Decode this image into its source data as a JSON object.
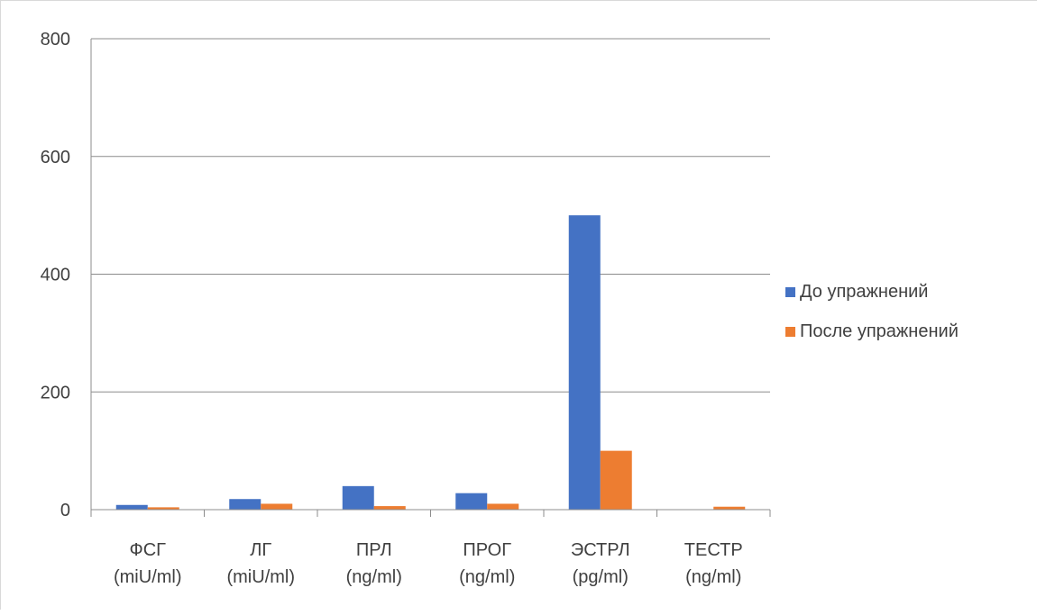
{
  "chart_data": {
    "type": "bar",
    "title": "",
    "xlabel": "",
    "ylabel": "",
    "categories": [
      [
        "ФСГ",
        "(miU/ml)"
      ],
      [
        "ЛГ",
        "(miU/ml)"
      ],
      [
        "ПРЛ",
        "(ng/ml)"
      ],
      [
        "ПРОГ",
        "(ng/ml)"
      ],
      [
        "ЭСТРЛ",
        "(pg/ml)"
      ],
      [
        "ТЕСТР",
        "(ng/ml)"
      ]
    ],
    "series": [
      {
        "name": "До упражнений",
        "color": "#4472C4",
        "values": [
          8,
          18,
          40,
          28,
          500,
          0
        ]
      },
      {
        "name": "После упражнений",
        "color": "#ED7D31",
        "values": [
          4,
          10,
          6,
          10,
          100,
          5
        ]
      }
    ],
    "ylim": [
      0,
      800
    ],
    "yticks": [
      "0",
      "200",
      "400",
      "600",
      "800"
    ],
    "grid": true,
    "legend_position": "right"
  }
}
